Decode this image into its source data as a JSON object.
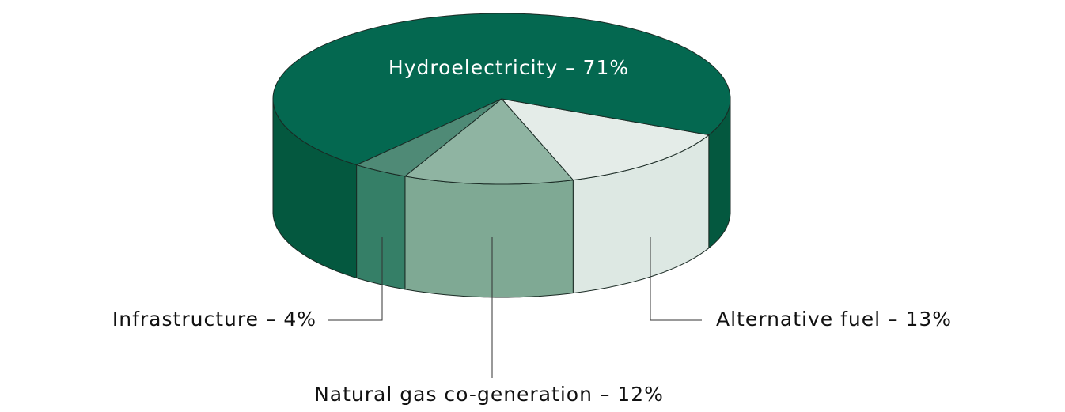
{
  "chart_data": {
    "type": "pie3d",
    "values": [
      13,
      12,
      4,
      71
    ],
    "value_labels": [
      "Alternative fuel  –  13%",
      "Natural gas co-generation  –  12%",
      "Infrastructure  –  4%",
      "Hydroelectricity  –  71%"
    ],
    "colors": [
      "#e4ece8",
      "#8fb4a2",
      "#4f8a76",
      "#046850"
    ],
    "side_colors": [
      "#dde8e3",
      "#7fa994",
      "#357f67",
      "#04583f"
    ],
    "label_colors": [
      "#111111",
      "#111111",
      "#111111",
      "#ffffff"
    ]
  }
}
